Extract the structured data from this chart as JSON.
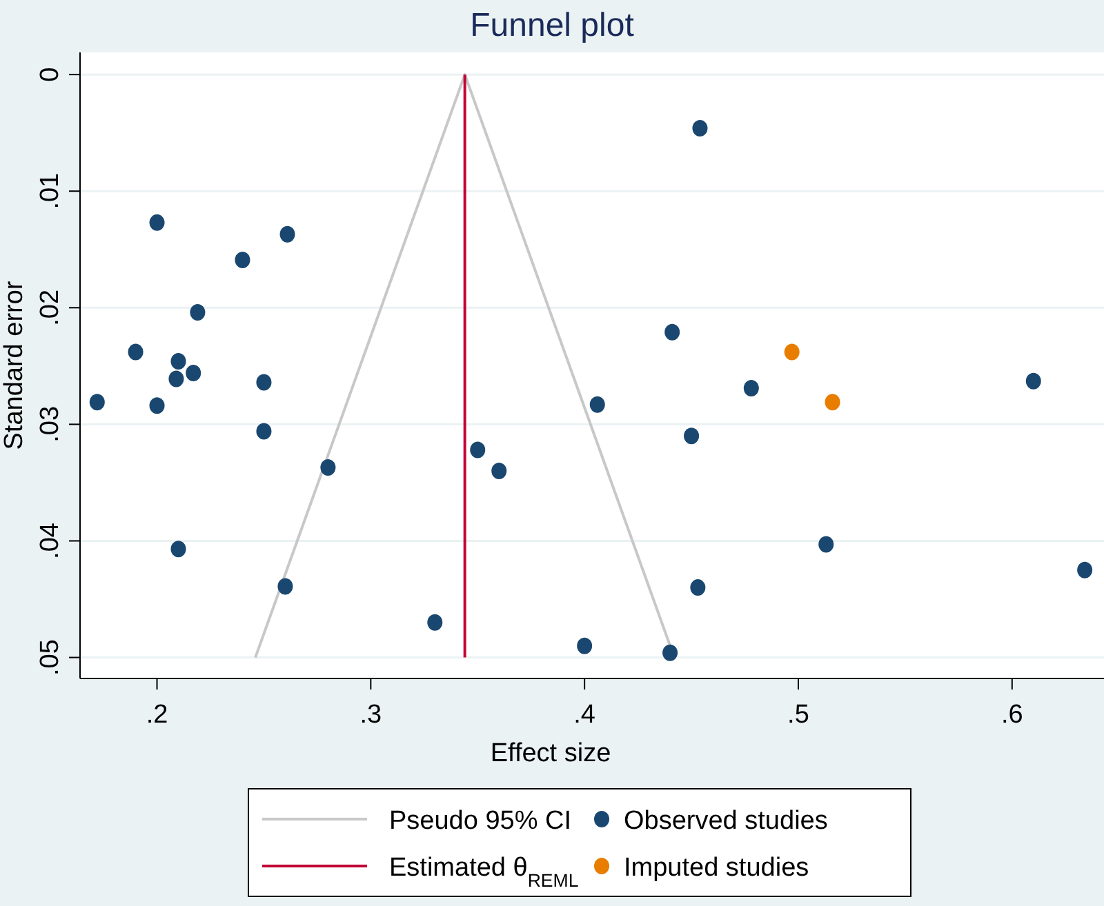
{
  "chart_data": {
    "type": "scatter",
    "title": "Funnel plot",
    "xlabel": "Effect size",
    "ylabel": "Standard error",
    "xlim": [
      0.164,
      0.643
    ],
    "xticks": [
      {
        "value": 0.2,
        "label": ".2"
      },
      {
        "value": 0.3,
        "label": ".3"
      },
      {
        "value": 0.4,
        "label": ".4"
      },
      {
        "value": 0.5,
        "label": ".5"
      },
      {
        "value": 0.6,
        "label": ".6"
      }
    ],
    "ylim": [
      0.0518,
      -0.0019
    ],
    "yticks": [
      0,
      {
        "value": 0.01,
        "label": ".01"
      },
      {
        "value": 0.02,
        "label": ".02"
      },
      {
        "value": 0.03,
        "label": ".03"
      },
      {
        "value": 0.04,
        "label": ".04"
      },
      {
        "value": 0.05,
        "label": ".05"
      }
    ],
    "grid": "y",
    "legend": "bottom",
    "series": [
      {
        "name": "Pseudo 95% CI",
        "type": "line",
        "marker": "none",
        "color": "#c8c8c8",
        "x": [
          0.246,
          0.344,
          0.442
        ],
        "values": [
          0.05,
          0,
          0.05
        ]
      },
      {
        "name": "Estimated θ$_{REML}$",
        "type": "line",
        "marker": "none",
        "color": "#c10534",
        "x": [
          0.344,
          0.344
        ],
        "values": [
          0,
          0.05
        ]
      },
      {
        "name": "Observed studies",
        "marker": "circle",
        "color": "#1a476f",
        "x": [
          0.2,
          0.261,
          0.24,
          0.219,
          0.19,
          0.21,
          0.217,
          0.209,
          0.25,
          0.172,
          0.2,
          0.25,
          0.28,
          0.35,
          0.36,
          0.21,
          0.26,
          0.33,
          0.454,
          0.441,
          0.478,
          0.61,
          0.406,
          0.45,
          0.513,
          0.634,
          0.453,
          0.4,
          0.44
        ],
        "values": [
          0.0127,
          0.0137,
          0.0159,
          0.0204,
          0.0238,
          0.0246,
          0.0256,
          0.0261,
          0.0264,
          0.0281,
          0.0284,
          0.0306,
          0.0337,
          0.0322,
          0.034,
          0.0407,
          0.0439,
          0.047,
          0.0046,
          0.0221,
          0.0269,
          0.0263,
          0.0283,
          0.031,
          0.0403,
          0.0425,
          0.044,
          0.049,
          0.0496
        ]
      },
      {
        "name": "Imputed studies",
        "marker": "circle",
        "color": "#e87d00",
        "x": [
          0.497,
          0.516
        ],
        "values": [
          0.0238,
          0.0281
        ]
      }
    ]
  }
}
